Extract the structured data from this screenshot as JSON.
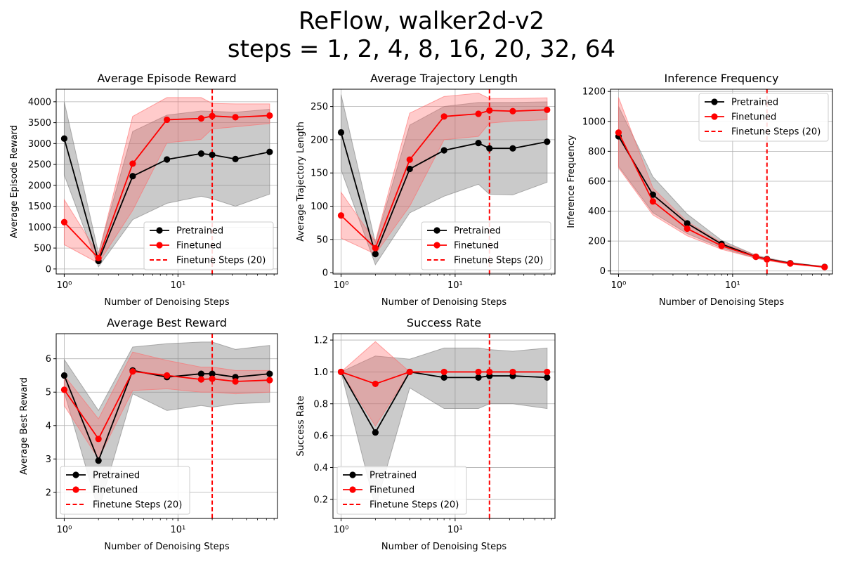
{
  "figure": {
    "title_line1": "ReFlow, walker2d-v2",
    "title_line2": "steps = 1, 2, 4, 8, 16, 20, 32, 64"
  },
  "colors": {
    "pretrained": "#000000",
    "finetuned": "#ff0000",
    "pretrained_band": "#808080",
    "finetuned_band": "#ff6b6b",
    "vline": "#ff0000",
    "grid": "#b0b0b0"
  },
  "legend": [
    "Pretrained",
    "Finetuned",
    "Finetune Steps (20)"
  ],
  "chart_data": [
    {
      "type": "line",
      "title": "Average Episode Reward",
      "xlabel": "Number of Denoising Steps",
      "ylabel": "Average Episode Reward",
      "x_scale": "log",
      "x": [
        1,
        2,
        4,
        8,
        16,
        20,
        32,
        64
      ],
      "xlim": [
        0.85,
        75
      ],
      "ylim": [
        -120,
        4300
      ],
      "yticks": [
        0,
        500,
        1000,
        1500,
        2000,
        2500,
        3000,
        3500,
        4000
      ],
      "ytick_labels": [
        "0",
        "500",
        "1000",
        "1500",
        "2000",
        "2500",
        "3000",
        "3500",
        "4000"
      ],
      "xticks": [
        1,
        10
      ],
      "xtick_labels": [
        "10⁰",
        "10¹"
      ],
      "vline_x": 20,
      "legend_position": "lower-right",
      "series": [
        {
          "name": "Pretrained",
          "values": [
            3120,
            190,
            2220,
            2620,
            2760,
            2730,
            2630,
            2800
          ],
          "band_low": [
            2250,
            50,
            1180,
            1570,
            1740,
            1680,
            1500,
            1790
          ],
          "band_high": [
            4000,
            380,
            3290,
            3680,
            3780,
            3770,
            3750,
            3820
          ]
        },
        {
          "name": "Finetuned",
          "values": [
            1120,
            260,
            2520,
            3570,
            3600,
            3660,
            3630,
            3670
          ],
          "band_low": [
            580,
            140,
            1400,
            3020,
            3100,
            3350,
            3400,
            3480
          ],
          "band_high": [
            1660,
            350,
            3650,
            4100,
            4100,
            3960,
            3950,
            3950
          ]
        }
      ]
    },
    {
      "type": "line",
      "title": "Average Trajectory Length",
      "xlabel": "Number of Denoising Steps",
      "ylabel": "Average Trajectory Length",
      "x_scale": "log",
      "x": [
        1,
        2,
        4,
        8,
        16,
        20,
        32,
        64
      ],
      "xlim": [
        0.85,
        75
      ],
      "ylim": [
        -2,
        276
      ],
      "yticks": [
        0,
        50,
        100,
        150,
        200,
        250
      ],
      "ytick_labels": [
        "0",
        "50",
        "100",
        "150",
        "200",
        "250"
      ],
      "xticks": [
        1,
        10
      ],
      "xtick_labels": [
        "10⁰",
        "10¹"
      ],
      "vline_x": 20,
      "legend_position": "lower-right",
      "series": [
        {
          "name": "Pretrained",
          "values": [
            211,
            28,
            156,
            184,
            195,
            187,
            187,
            197
          ],
          "band_low": [
            155,
            12,
            90,
            115,
            133,
            118,
            117,
            136
          ],
          "band_high": [
            268,
            45,
            222,
            250,
            256,
            256,
            256,
            257
          ]
        },
        {
          "name": "Finetuned",
          "values": [
            86,
            37,
            170,
            235,
            239,
            244,
            243,
            245
          ],
          "band_low": [
            52,
            28,
            100,
            200,
            205,
            225,
            228,
            230
          ],
          "band_high": [
            121,
            47,
            240,
            265,
            270,
            262,
            262,
            263
          ]
        }
      ]
    },
    {
      "type": "line",
      "title": "Inference Frequency",
      "xlabel": "Number of Denoising Steps",
      "ylabel": "Inference Frequency",
      "x_scale": "log",
      "x": [
        1,
        2,
        4,
        8,
        16,
        20,
        32,
        64
      ],
      "xlim": [
        0.85,
        75
      ],
      "ylim": [
        -20,
        1215
      ],
      "yticks": [
        0,
        200,
        400,
        600,
        800,
        1000,
        1200
      ],
      "ytick_labels": [
        "0",
        "200",
        "400",
        "600",
        "800",
        "1000",
        "1200"
      ],
      "xticks": [
        1,
        10
      ],
      "xtick_labels": [
        "10⁰",
        "10¹"
      ],
      "vline_x": 20,
      "legend_position": "top-right",
      "series": [
        {
          "name": "Pretrained",
          "values": [
            900,
            510,
            318,
            180,
            95,
            80,
            52,
            27
          ],
          "band_low": [
            700,
            390,
            250,
            155,
            85,
            72,
            47,
            24
          ],
          "band_high": [
            1100,
            630,
            380,
            205,
            105,
            88,
            57,
            30
          ]
        },
        {
          "name": "Finetuned",
          "values": [
            925,
            465,
            283,
            168,
            95,
            77,
            50,
            26
          ],
          "band_low": [
            690,
            375,
            235,
            145,
            85,
            70,
            45,
            23
          ],
          "band_high": [
            1160,
            555,
            330,
            190,
            105,
            84,
            55,
            29
          ]
        }
      ]
    },
    {
      "type": "line",
      "title": "Average Best Reward",
      "xlabel": "Number of Denoising Steps",
      "ylabel": "Average Best Reward",
      "x_scale": "log",
      "x": [
        1,
        2,
        4,
        8,
        16,
        20,
        32,
        64
      ],
      "xlim": [
        0.85,
        75
      ],
      "ylim": [
        1.22,
        6.75
      ],
      "yticks": [
        2,
        3,
        4,
        5,
        6
      ],
      "ytick_labels": [
        "2",
        "3",
        "4",
        "5",
        "6"
      ],
      "xticks": [
        1,
        10
      ],
      "xtick_labels": [
        "10⁰",
        "10¹"
      ],
      "vline_x": 20,
      "legend_position": "lower-left",
      "series": [
        {
          "name": "Pretrained",
          "values": [
            5.5,
            2.95,
            5.65,
            5.45,
            5.55,
            5.55,
            5.45,
            5.55
          ],
          "band_low": [
            5.0,
            1.45,
            4.95,
            4.45,
            4.6,
            4.55,
            4.65,
            4.7
          ],
          "band_high": [
            5.98,
            4.45,
            6.35,
            6.45,
            6.5,
            6.5,
            6.28,
            6.4
          ]
        },
        {
          "name": "Finetuned",
          "values": [
            5.07,
            3.6,
            5.62,
            5.5,
            5.38,
            5.4,
            5.32,
            5.36
          ],
          "band_low": [
            4.6,
            3.0,
            5.05,
            5.1,
            5.0,
            5.0,
            4.95,
            5.0
          ],
          "band_high": [
            5.5,
            4.2,
            6.2,
            5.95,
            5.75,
            5.75,
            5.65,
            5.65
          ]
        }
      ]
    },
    {
      "type": "line",
      "title": "Success Rate",
      "xlabel": "Number of Denoising Steps",
      "ylabel": "Success Rate",
      "x_scale": "log",
      "x": [
        1,
        2,
        4,
        8,
        16,
        20,
        32,
        64
      ],
      "xlim": [
        0.85,
        75
      ],
      "ylim": [
        0.08,
        1.24
      ],
      "yticks": [
        0.2,
        0.4,
        0.6,
        0.8,
        1.0,
        1.2
      ],
      "ytick_labels": [
        "0.2",
        "0.4",
        "0.6",
        "0.8",
        "1.0",
        "1.2"
      ],
      "xticks": [
        1,
        10
      ],
      "xtick_labels": [
        "10⁰",
        "10¹"
      ],
      "vline_x": 20,
      "legend_position": "lower-left",
      "series": [
        {
          "name": "Pretrained",
          "values": [
            1.0,
            0.62,
            1.0,
            0.965,
            0.965,
            0.975,
            0.975,
            0.965
          ],
          "band_low": [
            1.0,
            0.15,
            0.9,
            0.77,
            0.77,
            0.8,
            0.8,
            0.77
          ],
          "band_high": [
            1.0,
            1.1,
            1.08,
            1.15,
            1.15,
            1.14,
            1.13,
            1.15
          ]
        },
        {
          "name": "Finetuned",
          "values": [
            1.0,
            0.925,
            1.0,
            1.0,
            1.0,
            1.0,
            1.0,
            1.0
          ],
          "band_low": [
            1.0,
            0.66,
            1.0,
            1.0,
            1.0,
            1.0,
            1.0,
            1.0
          ],
          "band_high": [
            1.0,
            1.19,
            1.0,
            1.0,
            1.0,
            1.0,
            1.0,
            1.0
          ]
        }
      ]
    }
  ]
}
